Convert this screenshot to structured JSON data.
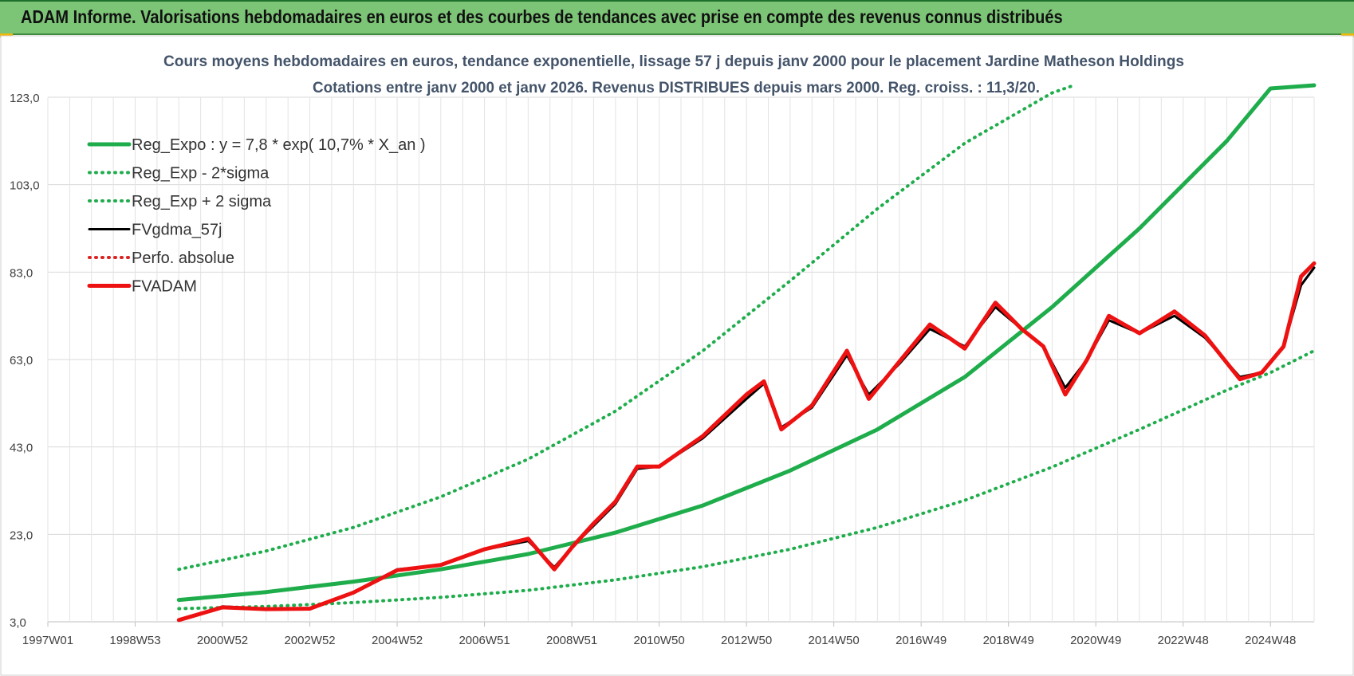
{
  "banner": {
    "title": "ADAM Informe. Valorisations hebdomadaires en euros et des courbes de tendances avec prise en compte des revenus connus distribués"
  },
  "colors": {
    "banner_bg": "#7cc576",
    "reg_expo": "#1fad4c",
    "bands": "#1fad4c",
    "fvgdma": "#000000",
    "fvadam": "#ee1111",
    "perfo": "#dd2222",
    "grid": "#d9d9d9",
    "title_text": "#44546a"
  },
  "chart_data": {
    "type": "line",
    "title_line1": "Cours moyens hebdomadaires en euros, tendance exponentielle, lissage 57 j depuis janv 2000  pour le placement Jardine Matheson Holdings",
    "title_line2": "Cotations entre janv 2000 et janv 2026. Revenus DISTRIBUES depuis mars 2000. Reg. croiss. : 11,3/20.",
    "xlabel": "",
    "ylabel": "",
    "ylim": [
      3.0,
      123.0
    ],
    "yticks": [
      "3,0",
      "23,0",
      "43,0",
      "63,0",
      "83,0",
      "103,0",
      "123,0"
    ],
    "xlim": [
      1997.0,
      2026.0
    ],
    "xticks": [
      {
        "label": "1997W01",
        "x": 1997.0
      },
      {
        "label": "1998W53",
        "x": 1999.0
      },
      {
        "label": "2000W52",
        "x": 2001.0
      },
      {
        "label": "2002W52",
        "x": 2003.0
      },
      {
        "label": "2004W52",
        "x": 2005.0
      },
      {
        "label": "2006W51",
        "x": 2007.0
      },
      {
        "label": "2008W51",
        "x": 2009.0
      },
      {
        "label": "2010W50",
        "x": 2011.0
      },
      {
        "label": "2012W50",
        "x": 2013.0
      },
      {
        "label": "2014W50",
        "x": 2015.0
      },
      {
        "label": "2016W49",
        "x": 2017.0
      },
      {
        "label": "2018W49",
        "x": 2019.0
      },
      {
        "label": "2020W49",
        "x": 2021.0
      },
      {
        "label": "2022W48",
        "x": 2023.0
      },
      {
        "label": "2024W48",
        "x": 2025.0
      }
    ],
    "grid": true,
    "legend_position": "top-left",
    "series": [
      {
        "name": "Reg_Expo : y = 7,8 * exp( 10,7% *  X_an )",
        "style": "solid-thick",
        "color": "#1fad4c",
        "x": [
          2000.0,
          2002.0,
          2004.0,
          2006.0,
          2008.0,
          2010.0,
          2012.0,
          2014.0,
          2016.0,
          2018.0,
          2020.0,
          2022.0,
          2024.0,
          2025.0,
          2026.0
        ],
        "y": [
          8.0,
          9.8,
          12.2,
          15.0,
          18.5,
          23.4,
          29.6,
          37.6,
          47.0,
          59.0,
          75.0,
          93.0,
          113.0,
          125.0,
          127.0
        ]
      },
      {
        "name": "Reg_Exp - 2*sigma",
        "style": "dotted",
        "color": "#1fad4c",
        "x": [
          2000.0,
          2002.0,
          2004.0,
          2006.0,
          2008.0,
          2010.0,
          2012.0,
          2014.0,
          2016.0,
          2018.0,
          2020.0,
          2022.0,
          2024.0,
          2025.0,
          2026.0
        ],
        "y": [
          6.0,
          6.5,
          7.4,
          8.6,
          10.2,
          12.6,
          15.6,
          19.6,
          24.6,
          30.8,
          38.4,
          47.0,
          56.0,
          60.0,
          65.0
        ]
      },
      {
        "name": "Reg_Exp + 2 sigma",
        "style": "dotted",
        "color": "#1fad4c",
        "x": [
          2000.0,
          2002.0,
          2004.0,
          2006.0,
          2008.0,
          2010.0,
          2012.0,
          2014.0,
          2016.0,
          2018.0,
          2020.0,
          2020.5
        ],
        "y": [
          15.0,
          19.2,
          24.6,
          31.6,
          40.2,
          51.2,
          65.0,
          81.0,
          97.5,
          112.5,
          124.0,
          129.5
        ]
      },
      {
        "name": "FVgdma_57j",
        "style": "solid",
        "color": "#000000",
        "x": [
          2000.0,
          2001.0,
          2002.0,
          2003.0,
          2004.0,
          2005.0,
          2006.0,
          2007.0,
          2008.0,
          2008.6,
          2009.0,
          2009.5,
          2010.0,
          2010.5,
          2011.0,
          2012.0,
          2013.0,
          2013.4,
          2013.8,
          2014.5,
          2015.3,
          2015.8,
          2016.5,
          2017.2,
          2018.0,
          2018.7,
          2019.3,
          2019.8,
          2020.3,
          2020.8,
          2021.3,
          2022.0,
          2022.8,
          2023.5,
          2024.3,
          2024.8,
          2025.3,
          2025.7,
          2026.0
        ],
        "y": [
          3.5,
          6.5,
          6.0,
          6.0,
          9.8,
          15.0,
          16.0,
          19.5,
          21.5,
          15.5,
          20.0,
          25.0,
          30.0,
          38.0,
          38.5,
          45.0,
          54.0,
          57.5,
          47.5,
          52.0,
          64.0,
          55.0,
          62.0,
          70.0,
          66.0,
          75.0,
          70.0,
          66.0,
          56.5,
          63.0,
          72.0,
          69.0,
          73.0,
          68.0,
          59.0,
          60.0,
          66.0,
          80.0,
          84.0
        ]
      },
      {
        "name": "Perfo. absolue",
        "style": "dotted",
        "color": "#dd2222",
        "x": [
          2000.0,
          2001.0,
          2002.0,
          2003.0,
          2004.0,
          2005.0,
          2006.0,
          2007.0,
          2008.0,
          2008.6,
          2009.0,
          2009.5,
          2010.0,
          2010.5,
          2011.0,
          2012.0,
          2013.0,
          2013.4,
          2013.8,
          2014.5,
          2015.3,
          2015.8,
          2016.5,
          2017.2,
          2018.0,
          2018.7,
          2019.3,
          2019.8,
          2020.3,
          2020.8,
          2021.3,
          2022.0,
          2022.8,
          2023.5,
          2024.3,
          2024.8,
          2025.3,
          2025.7,
          2026.0
        ],
        "y": [
          3.4,
          6.3,
          5.9,
          6.0,
          9.7,
          14.8,
          16.0,
          19.6,
          22.0,
          15.0,
          20.0,
          25.5,
          30.5,
          38.5,
          38.5,
          45.5,
          55.0,
          58.0,
          47.0,
          52.5,
          65.0,
          54.0,
          62.5,
          71.0,
          65.5,
          76.0,
          70.0,
          66.0,
          55.0,
          63.0,
          73.0,
          69.0,
          74.0,
          68.5,
          58.5,
          60.0,
          66.0,
          82.0,
          85.0
        ]
      },
      {
        "name": "FVADAM",
        "style": "solid-thick",
        "color": "#ee1111",
        "x": [
          2000.0,
          2001.0,
          2002.0,
          2003.0,
          2004.0,
          2005.0,
          2006.0,
          2007.0,
          2008.0,
          2008.6,
          2009.0,
          2009.5,
          2010.0,
          2010.5,
          2011.0,
          2012.0,
          2013.0,
          2013.4,
          2013.8,
          2014.5,
          2015.3,
          2015.8,
          2016.5,
          2017.2,
          2018.0,
          2018.7,
          2019.3,
          2019.8,
          2020.3,
          2020.8,
          2021.3,
          2022.0,
          2022.8,
          2023.5,
          2024.3,
          2024.8,
          2025.3,
          2025.7,
          2026.0
        ],
        "y": [
          3.4,
          6.3,
          5.9,
          6.0,
          9.7,
          14.8,
          16.0,
          19.6,
          22.0,
          15.0,
          20.0,
          25.5,
          30.5,
          38.5,
          38.5,
          45.5,
          55.0,
          58.0,
          47.0,
          52.5,
          65.0,
          54.0,
          62.5,
          71.0,
          65.5,
          76.0,
          70.0,
          66.0,
          55.0,
          63.0,
          73.0,
          69.0,
          74.0,
          68.5,
          58.5,
          60.0,
          66.0,
          82.0,
          85.0
        ]
      }
    ]
  }
}
